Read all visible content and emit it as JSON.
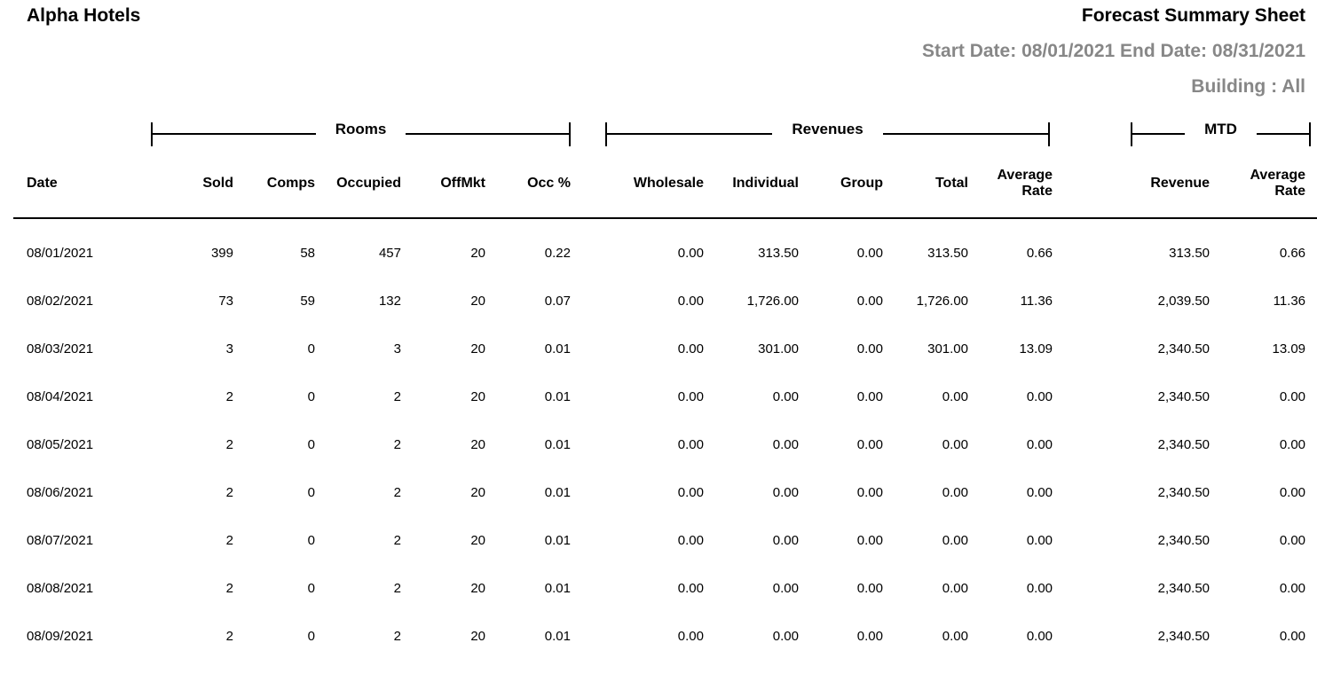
{
  "header": {
    "company": "Alpha Hotels",
    "report_title": "Forecast Summary Sheet",
    "start_date_label": "Start Date:",
    "start_date": "08/01/2021",
    "end_date_label": "End Date:",
    "end_date": "08/31/2021",
    "building_label": "Building :",
    "building_value": "All"
  },
  "colors": {
    "muted_text": "#878787",
    "text": "#000000",
    "rule": "#000000",
    "background": "#ffffff"
  },
  "table": {
    "groups": [
      {
        "label": "Rooms",
        "span": 5
      },
      {
        "label": "Revenues",
        "span": 5
      },
      {
        "label": "MTD",
        "span": 2
      }
    ],
    "columns": [
      "Date",
      "Sold",
      "Comps",
      "Occupied",
      "OffMkt",
      "Occ %",
      "Wholesale",
      "Individual",
      "Group",
      "Total",
      "Average\nRate",
      "Revenue",
      "Average\nRate"
    ],
    "column_ids": [
      "date",
      "sold",
      "comps",
      "occupied",
      "offmkt",
      "occ-pct",
      "wholesale",
      "individual",
      "group",
      "total",
      "average-rate",
      "mtd-revenue",
      "mtd-average-rate"
    ],
    "rows": [
      [
        "08/01/2021",
        "399",
        "58",
        "457",
        "20",
        "0.22",
        "0.00",
        "313.50",
        "0.00",
        "313.50",
        "0.66",
        "313.50",
        "0.66"
      ],
      [
        "08/02/2021",
        "73",
        "59",
        "132",
        "20",
        "0.07",
        "0.00",
        "1,726.00",
        "0.00",
        "1,726.00",
        "11.36",
        "2,039.50",
        "11.36"
      ],
      [
        "08/03/2021",
        "3",
        "0",
        "3",
        "20",
        "0.01",
        "0.00",
        "301.00",
        "0.00",
        "301.00",
        "13.09",
        "2,340.50",
        "13.09"
      ],
      [
        "08/04/2021",
        "2",
        "0",
        "2",
        "20",
        "0.01",
        "0.00",
        "0.00",
        "0.00",
        "0.00",
        "0.00",
        "2,340.50",
        "0.00"
      ],
      [
        "08/05/2021",
        "2",
        "0",
        "2",
        "20",
        "0.01",
        "0.00",
        "0.00",
        "0.00",
        "0.00",
        "0.00",
        "2,340.50",
        "0.00"
      ],
      [
        "08/06/2021",
        "2",
        "0",
        "2",
        "20",
        "0.01",
        "0.00",
        "0.00",
        "0.00",
        "0.00",
        "0.00",
        "2,340.50",
        "0.00"
      ],
      [
        "08/07/2021",
        "2",
        "0",
        "2",
        "20",
        "0.01",
        "0.00",
        "0.00",
        "0.00",
        "0.00",
        "0.00",
        "2,340.50",
        "0.00"
      ],
      [
        "08/08/2021",
        "2",
        "0",
        "2",
        "20",
        "0.01",
        "0.00",
        "0.00",
        "0.00",
        "0.00",
        "0.00",
        "2,340.50",
        "0.00"
      ],
      [
        "08/09/2021",
        "2",
        "0",
        "2",
        "20",
        "0.01",
        "0.00",
        "0.00",
        "0.00",
        "0.00",
        "0.00",
        "2,340.50",
        "0.00"
      ]
    ]
  }
}
